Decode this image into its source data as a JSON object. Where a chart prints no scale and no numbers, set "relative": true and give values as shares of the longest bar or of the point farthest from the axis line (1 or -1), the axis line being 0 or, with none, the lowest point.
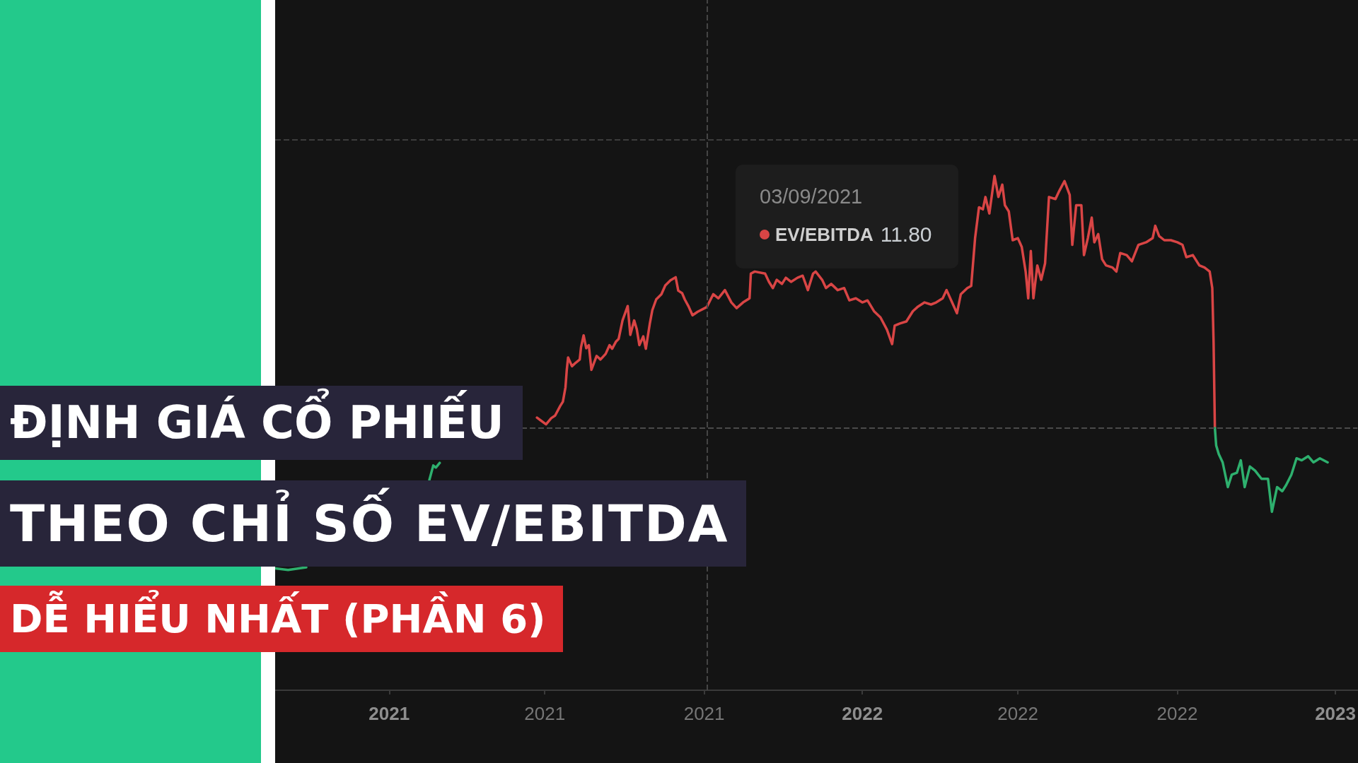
{
  "chart_data": {
    "type": "line",
    "title": "ĐỊNH GIÁ CỔ PHIẾU\nTHEO CHỈ SỐ EV/EBITDA",
    "subtitle": "DỄ HIỂU NHẤT (PHẦN 6)",
    "annotations": [
      "03/09/2021",
      "11.80"
    ],
    "relative": true,
    "legend": "top",
    "xlim": [
      "2020-10-05",
      "2023-01-18"
    ],
    "xticks": [
      {
        "value": "2021-01-01",
        "label": "2021"
      },
      {
        "value": "2021-05-01",
        "label": "2021"
      },
      {
        "value": "2021-09-01",
        "label": "2021"
      },
      {
        "value": "2022-01-01",
        "label": "2022"
      },
      {
        "value": "2022-05-01",
        "label": "2022"
      },
      {
        "value": "2022-09-01",
        "label": "2022"
      },
      {
        "value": "2023-01-01",
        "label": "2023"
      }
    ],
    "ref_lines": [
      {
        "axis": "y",
        "value": 0.51,
        "line_style": "dashed",
        "color": "#4a4a4a"
      },
      {
        "axis": "y",
        "value": 1.07,
        "line_style": "dashed",
        "color": "#3d3d3d"
      },
      {
        "axis": "x",
        "value": "2021-09-03",
        "line_style": "dashed",
        "color": "#454545"
      }
    ],
    "series": [
      {
        "name": "EV/EBITDA",
        "color": "#d94545",
        "x": [
          "2021-04-25",
          "2021-05-02",
          "2021-05-06",
          "2021-05-09",
          "2021-05-13",
          "2021-05-15",
          "2021-05-17",
          "2021-05-18",
          "2021-05-19",
          "2021-05-22",
          "2021-05-25",
          "2021-05-28",
          "2021-05-29",
          "2021-05-31",
          "2021-06-02",
          "2021-06-04",
          "2021-06-06",
          "2021-06-10",
          "2021-06-13",
          "2021-06-17",
          "2021-06-20",
          "2021-06-22",
          "2021-06-25",
          "2021-06-27",
          "2021-06-30",
          "2021-07-04",
          "2021-07-06",
          "2021-07-09",
          "2021-07-11",
          "2021-07-13",
          "2021-07-16",
          "2021-07-18",
          "2021-07-21",
          "2021-07-23",
          "2021-07-26",
          "2021-07-30",
          "2021-08-02",
          "2021-08-06",
          "2021-08-10",
          "2021-08-12",
          "2021-08-15",
          "2021-08-17",
          "2021-08-20",
          "2021-08-23",
          "2021-08-27",
          "2021-09-03",
          "2021-09-08",
          "2021-09-12",
          "2021-09-17",
          "2021-09-22",
          "2021-09-26",
          "2021-10-01",
          "2021-10-06",
          "2021-10-07",
          "2021-10-10",
          "2021-10-18",
          "2021-10-21",
          "2021-10-24",
          "2021-10-27",
          "2021-10-31",
          "2021-11-03",
          "2021-11-07",
          "2021-11-12",
          "2021-11-16",
          "2021-11-20",
          "2021-11-24",
          "2021-11-26",
          "2021-12-01",
          "2021-12-04",
          "2021-12-08",
          "2021-12-13",
          "2021-12-18",
          "2021-12-22",
          "2021-12-27",
          "2022-01-01",
          "2022-01-05",
          "2022-01-10",
          "2022-01-15",
          "2022-01-20",
          "2022-01-24",
          "2022-01-26",
          "2022-01-30",
          "2022-02-04",
          "2022-02-09",
          "2022-02-13",
          "2022-02-18",
          "2022-02-23",
          "2022-02-27",
          "2022-03-04",
          "2022-03-07",
          "2022-03-12",
          "2022-03-15",
          "2022-03-18",
          "2022-03-23",
          "2022-03-26",
          "2022-03-29",
          "2022-04-01",
          "2022-04-04",
          "2022-04-06",
          "2022-04-09",
          "2022-04-13",
          "2022-04-16",
          "2022-04-19",
          "2022-04-21",
          "2022-04-24",
          "2022-04-27",
          "2022-05-01",
          "2022-05-04",
          "2022-05-07",
          "2022-05-09",
          "2022-05-11",
          "2022-05-13",
          "2022-05-16",
          "2022-05-19",
          "2022-05-22",
          "2022-05-25",
          "2022-05-30",
          "2022-06-02",
          "2022-06-06",
          "2022-06-10",
          "2022-06-12",
          "2022-06-15",
          "2022-06-19",
          "2022-06-21",
          "2022-06-24",
          "2022-06-27",
          "2022-06-29",
          "2022-07-02",
          "2022-07-05",
          "2022-07-08",
          "2022-07-13",
          "2022-07-16",
          "2022-07-19",
          "2022-07-24",
          "2022-07-28",
          "2022-08-02",
          "2022-08-08",
          "2022-08-13",
          "2022-08-15",
          "2022-08-18",
          "2022-08-22",
          "2022-08-27",
          "2022-09-01",
          "2022-09-05",
          "2022-09-08",
          "2022-09-13",
          "2022-09-18",
          "2022-09-22",
          "2022-09-26",
          "2022-09-28",
          "2022-09-29",
          "2022-09-30"
        ],
        "values": [
          0.53,
          0.517,
          0.529,
          0.534,
          0.553,
          0.561,
          0.589,
          0.623,
          0.647,
          0.63,
          0.637,
          0.643,
          0.667,
          0.69,
          0.665,
          0.671,
          0.623,
          0.65,
          0.643,
          0.654,
          0.671,
          0.664,
          0.678,
          0.683,
          0.719,
          0.747,
          0.691,
          0.719,
          0.702,
          0.671,
          0.688,
          0.664,
          0.712,
          0.739,
          0.76,
          0.77,
          0.787,
          0.797,
          0.803,
          0.777,
          0.772,
          0.76,
          0.746,
          0.729,
          0.736,
          0.745,
          0.77,
          0.762,
          0.778,
          0.754,
          0.743,
          0.754,
          0.762,
          0.81,
          0.814,
          0.81,
          0.794,
          0.782,
          0.798,
          0.79,
          0.802,
          0.794,
          0.802,
          0.806,
          0.778,
          0.81,
          0.814,
          0.798,
          0.782,
          0.79,
          0.778,
          0.782,
          0.758,
          0.762,
          0.754,
          0.758,
          0.737,
          0.725,
          0.701,
          0.673,
          0.709,
          0.713,
          0.717,
          0.737,
          0.746,
          0.754,
          0.75,
          0.754,
          0.762,
          0.778,
          0.75,
          0.733,
          0.77,
          0.782,
          0.786,
          0.879,
          0.939,
          0.935,
          0.959,
          0.927,
          1.0,
          0.959,
          0.983,
          0.943,
          0.931,
          0.875,
          0.879,
          0.862,
          0.814,
          0.762,
          0.854,
          0.762,
          0.826,
          0.798,
          0.83,
          0.959,
          0.955,
          0.971,
          0.99,
          0.963,
          0.866,
          0.943,
          0.943,
          0.846,
          0.879,
          0.919,
          0.871,
          0.887,
          0.838,
          0.826,
          0.822,
          0.814,
          0.85,
          0.846,
          0.834,
          0.866,
          0.871,
          0.879,
          0.903,
          0.883,
          0.875,
          0.875,
          0.871,
          0.866,
          0.842,
          0.846,
          0.826,
          0.822,
          0.814,
          0.782,
          0.677,
          0.51
        ]
      },
      {
        "color": "#2eb06e",
        "x": [
          "2020-10-05",
          "2020-10-15",
          "2020-10-29",
          "2020-12-15",
          "2021-02-01",
          "2021-02-04",
          "2021-02-06",
          "2021-02-09",
          "2021-03-15",
          "2022-09-30",
          "2022-10-01",
          "2022-10-03",
          "2022-10-06",
          "2022-10-10",
          "2022-10-13",
          "2022-10-17",
          "2022-10-20",
          "2022-10-23",
          "2022-10-27",
          "2022-10-31",
          "2022-11-05",
          "2022-11-10",
          "2022-11-13",
          "2022-11-17",
          "2022-11-21",
          "2022-11-24",
          "2022-11-28",
          "2022-12-02",
          "2022-12-06",
          "2022-12-11",
          "2022-12-15",
          "2022-12-20",
          "2022-12-26"
        ],
        "values": [
          0.237,
          0.234,
          0.239,
          null,
          0.409,
          0.437,
          0.433,
          0.442,
          null,
          0.51,
          0.476,
          0.459,
          0.443,
          0.395,
          0.419,
          0.423,
          0.447,
          0.395,
          0.435,
          0.427,
          0.411,
          0.411,
          0.347,
          0.395,
          0.387,
          0.399,
          0.419,
          0.451,
          0.447,
          0.455,
          0.443,
          0.451,
          0.443
        ]
      }
    ]
  }
}
